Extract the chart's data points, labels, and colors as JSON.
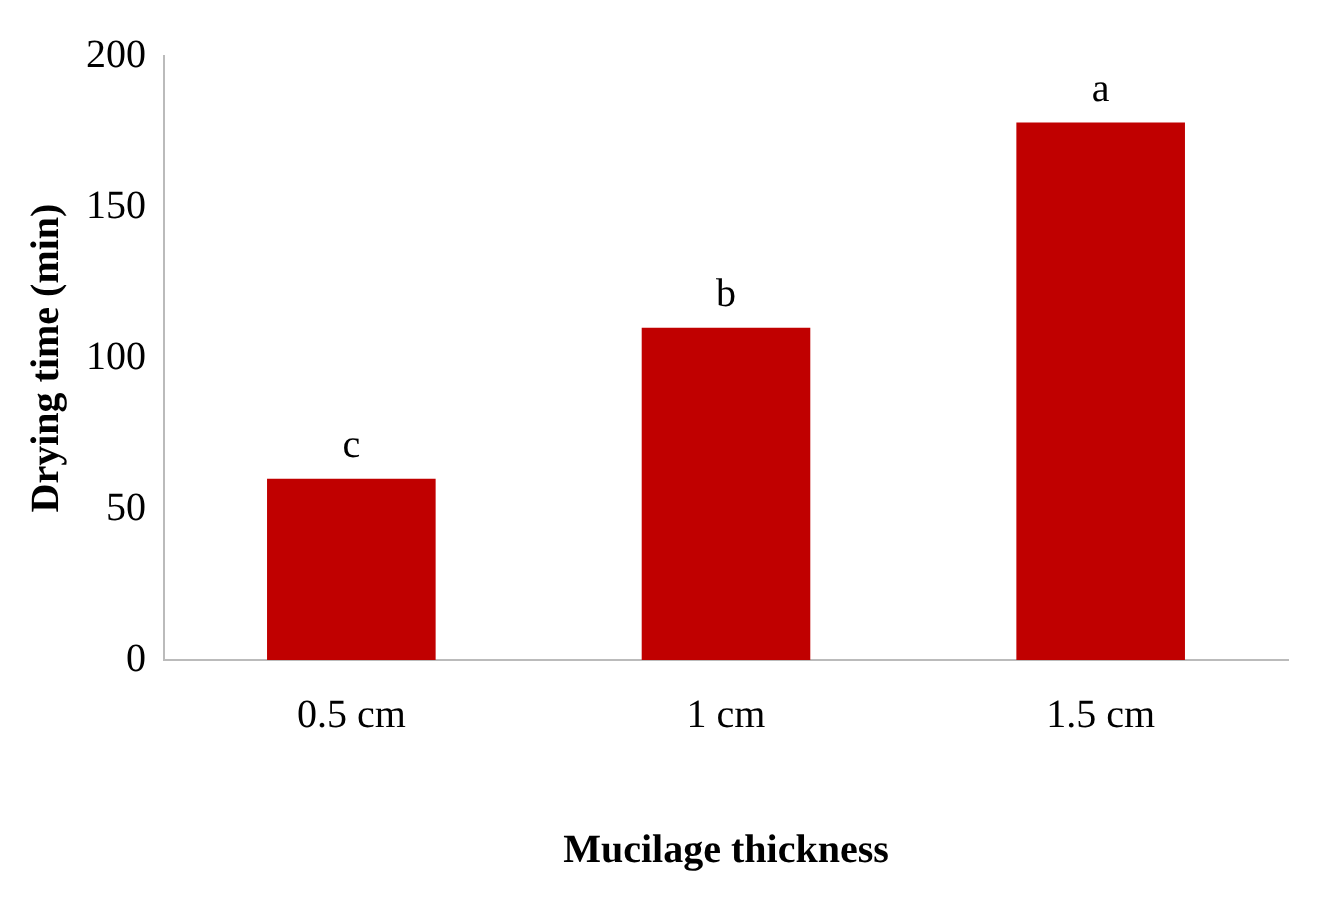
{
  "chart_data": {
    "type": "bar",
    "xlabel": "Mucilage thickness",
    "ylabel": "Drying time (min)",
    "categories": [
      "0.5 cm",
      "1 cm",
      "1.5 cm"
    ],
    "values": [
      60,
      110,
      178
    ],
    "color": "#c00000",
    "value_labels": [
      "c",
      "b",
      "a"
    ],
    "ylim": [
      0,
      200
    ],
    "yticks": [
      0,
      50,
      100,
      150,
      200
    ],
    "grid": false
  }
}
